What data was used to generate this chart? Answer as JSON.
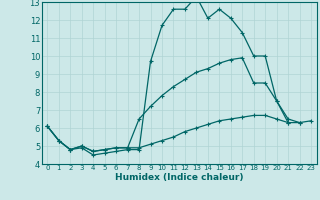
{
  "background_color": "#cce8e8",
  "grid_color": "#aacccc",
  "line_color": "#006666",
  "marker": "+",
  "xlabel": "Humidex (Indice chaleur)",
  "xlim": [
    -0.5,
    23.5
  ],
  "ylim": [
    4,
    13
  ],
  "xticks": [
    0,
    1,
    2,
    3,
    4,
    5,
    6,
    7,
    8,
    9,
    10,
    11,
    12,
    13,
    14,
    15,
    16,
    17,
    18,
    19,
    20,
    21,
    22,
    23
  ],
  "yticks": [
    4,
    5,
    6,
    7,
    8,
    9,
    10,
    11,
    12,
    13
  ],
  "series": [
    {
      "x": [
        0,
        1,
        2,
        3,
        4,
        5,
        6,
        7,
        8,
        9,
        10,
        11,
        12,
        13,
        14,
        15,
        16,
        17,
        18,
        19,
        20,
        21
      ],
      "y": [
        6.1,
        5.3,
        4.8,
        4.9,
        4.5,
        4.6,
        4.7,
        4.8,
        4.8,
        9.7,
        11.7,
        12.6,
        12.6,
        13.3,
        12.1,
        12.6,
        12.1,
        11.3,
        10.0,
        10.0,
        7.5,
        6.3
      ]
    },
    {
      "x": [
        0,
        1,
        2,
        3,
        4,
        5,
        6,
        7,
        8,
        9,
        10,
        11,
        12,
        13,
        14,
        15,
        16,
        17,
        18,
        19,
        20,
        21,
        22
      ],
      "y": [
        6.1,
        5.3,
        4.8,
        5.0,
        4.7,
        4.8,
        4.9,
        4.9,
        6.5,
        7.2,
        7.8,
        8.3,
        8.7,
        9.1,
        9.3,
        9.6,
        9.8,
        9.9,
        8.5,
        8.5,
        7.5,
        6.5,
        6.3
      ]
    },
    {
      "x": [
        0,
        1,
        2,
        3,
        4,
        5,
        6,
        7,
        8,
        9,
        10,
        11,
        12,
        13,
        14,
        15,
        16,
        17,
        18,
        19,
        20,
        21,
        22,
        23
      ],
      "y": [
        6.1,
        5.3,
        4.8,
        5.0,
        4.7,
        4.8,
        4.9,
        4.9,
        4.9,
        5.1,
        5.3,
        5.5,
        5.8,
        6.0,
        6.2,
        6.4,
        6.5,
        6.6,
        6.7,
        6.7,
        6.5,
        6.3,
        6.3,
        6.4
      ]
    }
  ]
}
